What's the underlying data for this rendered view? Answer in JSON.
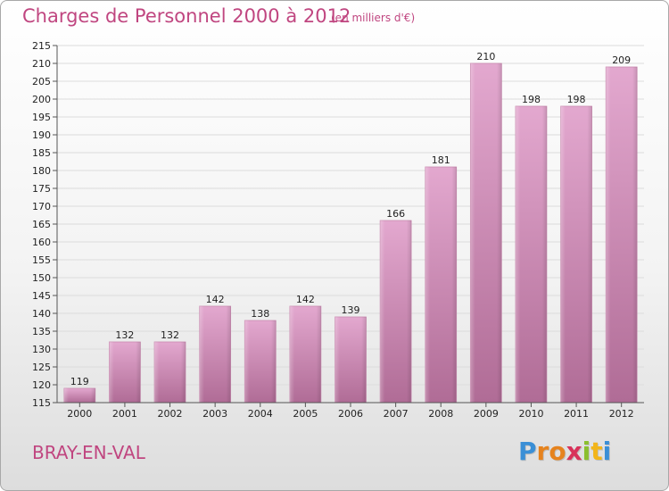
{
  "header": {
    "title": "Charges de Personnel 2000 à 2012",
    "subtitle": "(en milliers d'€)"
  },
  "footer": {
    "commune": "BRAY-EN-VAL",
    "logo_text": "Proxiti"
  },
  "colors": {
    "bar_top": "#e3a8cf",
    "bar_bottom": "#b06c96",
    "text_accent": "#c04680",
    "grid": "#dcdcdc"
  },
  "chart_data": {
    "type": "bar",
    "title": "Charges de Personnel 2000 à 2012",
    "subtitle": "(en milliers d'€)",
    "xlabel": "",
    "ylabel": "",
    "categories": [
      "2000",
      "2001",
      "2002",
      "2003",
      "2004",
      "2005",
      "2006",
      "2007",
      "2008",
      "2009",
      "2010",
      "2011",
      "2012"
    ],
    "values": [
      119,
      132,
      132,
      142,
      138,
      142,
      139,
      166,
      181,
      210,
      198,
      198,
      209
    ],
    "ylim": [
      115,
      215
    ],
    "yticks": [
      115,
      120,
      125,
      130,
      135,
      140,
      145,
      150,
      155,
      160,
      165,
      170,
      175,
      180,
      185,
      190,
      195,
      200,
      205,
      210,
      215
    ],
    "grid": true,
    "legend": "none",
    "data_labels": true
  }
}
